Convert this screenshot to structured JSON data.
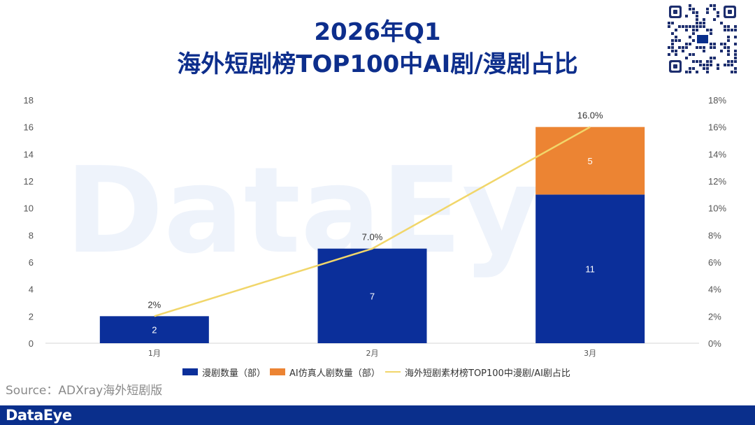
{
  "header": {
    "title_line1": "2026年Q1",
    "title_line2": "海外短剧榜TOP100中AI剧/漫剧占比"
  },
  "source": "Source：ADXray海外短剧版",
  "footer": {
    "brand": "DataEye"
  },
  "watermark": "DataEye",
  "colors": {
    "primary": "#0b2f9a",
    "orange": "#ec8433",
    "line": "#f1d66a",
    "title": "#0d2e8c"
  },
  "chart_data": {
    "type": "bar",
    "stacked": true,
    "categories": [
      "1月",
      "2月",
      "3月"
    ],
    "series": [
      {
        "name": "漫剧数量（部）",
        "values": [
          2,
          7,
          11
        ],
        "labels": [
          "2",
          "7",
          "11"
        ],
        "color": "#0b2f9a"
      },
      {
        "name": "AI仿真人剧数量（部）",
        "values": [
          0,
          0,
          5
        ],
        "labels": [
          "",
          "",
          "5"
        ],
        "color": "#ec8433"
      }
    ],
    "line_series": {
      "name": "海外短剧素材榜TOP100中漫剧/AI剧占比",
      "values": [
        2,
        7,
        16
      ],
      "labels": [
        "2%",
        "7.0%",
        "16.0%"
      ],
      "color": "#f1d66a",
      "axis": "right"
    },
    "y_left": {
      "lim": [
        0,
        18
      ],
      "ticks": [
        "0",
        "2",
        "4",
        "6",
        "8",
        "10",
        "12",
        "14",
        "16",
        "18"
      ]
    },
    "y_right": {
      "lim": [
        0,
        18
      ],
      "ticks": [
        "0%",
        "2%",
        "4%",
        "6%",
        "8%",
        "10%",
        "12%",
        "14%",
        "16%",
        "18%"
      ]
    },
    "grid": false,
    "legend_position": "bottom"
  }
}
